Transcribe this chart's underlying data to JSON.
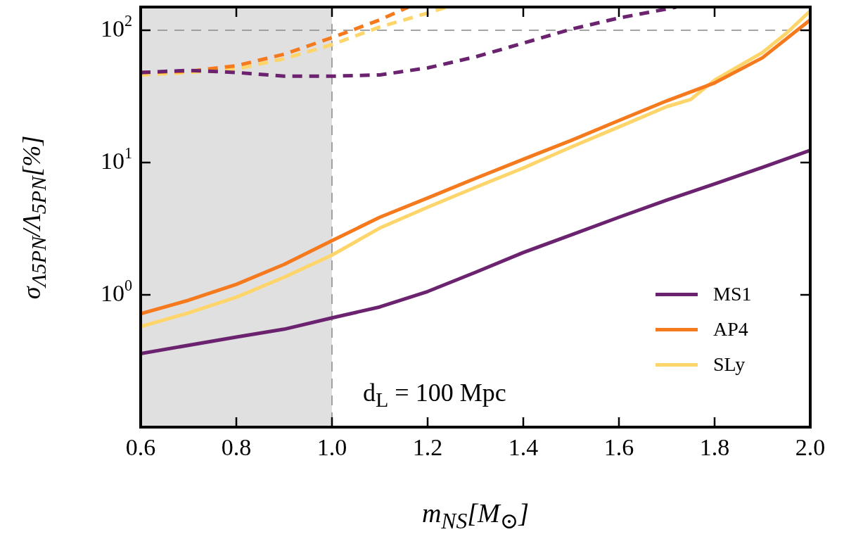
{
  "chart_data": {
    "type": "line",
    "xlabel": "m$_{NS}$[M$_{⊙}$]",
    "ylabel": "σ$_{Λ5PN}$/Λ$_{5PN}$[%]",
    "xlim": [
      0.6,
      2.0
    ],
    "xticks": [
      0.6,
      0.8,
      {
        "value": 1,
        "label": "1.0"
      },
      1.2,
      1.4,
      1.6,
      1.8,
      {
        "value": 2,
        "label": "2.0"
      }
    ],
    "ylim": [
      0.1,
      150
    ],
    "yticks": [
      {
        "value": 1,
        "label": "10$^{0}$"
      },
      {
        "value": 10,
        "label": "10$^{1}$"
      },
      {
        "value": 100,
        "label": "10$^{2}$"
      }
    ],
    "log": "y",
    "grid": false,
    "legend": "bottom right",
    "marker": "none",
    "annotations": [
      "d$_{L}$ = 100 Mpc"
    ],
    "bands": [
      {
        "axis": "x",
        "from": 0.6,
        "to": 1.0,
        "color": "#e0e0e0"
      }
    ],
    "ref_lines": [
      {
        "axis": "x",
        "value": 1.0,
        "color": "#888888",
        "line_style": "dashed"
      },
      {
        "axis": "y",
        "value": 100,
        "color": "#888888",
        "line_style": "dashed"
      }
    ],
    "series": [
      {
        "name": "MS1",
        "color": "#6b2370",
        "line_style": "solid",
        "x": [
          0.6,
          0.8,
          0.9,
          1.0,
          1.1,
          1.2,
          1.3,
          1.4,
          1.5,
          1.6,
          1.7,
          1.8,
          1.9,
          2.0
        ],
        "values": [
          0.36,
          0.48,
          0.55,
          0.67,
          0.81,
          1.06,
          1.48,
          2.09,
          2.84,
          3.86,
          5.2,
          6.9,
          9.2,
          12.4
        ]
      },
      {
        "name": "AP4",
        "color": "#f57a1e",
        "line_style": "solid",
        "x": [
          0.6,
          0.7,
          0.8,
          0.9,
          1.0,
          1.1,
          1.2,
          1.3,
          1.4,
          1.5,
          1.6,
          1.7,
          1.8,
          1.9,
          2.0
        ],
        "values": [
          0.72,
          0.91,
          1.2,
          1.7,
          2.57,
          3.86,
          5.4,
          7.6,
          10.6,
          14.7,
          20.8,
          29.3,
          40,
          62,
          120
        ]
      },
      {
        "name": "SLy",
        "color": "#fdd56a",
        "line_style": "solid",
        "x": [
          0.6,
          0.7,
          0.8,
          0.9,
          1.0,
          1.1,
          1.2,
          1.3,
          1.4,
          1.5,
          1.6,
          1.7,
          1.75,
          1.8,
          1.9,
          1.95,
          2.0
        ],
        "values": [
          0.575,
          0.73,
          0.96,
          1.36,
          2.0,
          3.2,
          4.6,
          6.5,
          9.1,
          13.1,
          18.6,
          26.5,
          30,
          42,
          68,
          95,
          140
        ]
      },
      {
        "color": "#6b2370",
        "line_style": "dashed",
        "x": [
          0.6,
          0.7,
          0.8,
          0.9,
          1.0,
          1.1,
          1.2,
          1.3,
          1.4,
          1.5,
          1.6,
          1.7,
          1.72
        ],
        "values": [
          48,
          49.8,
          48,
          45,
          45,
          46,
          52,
          63,
          80,
          102,
          124,
          145,
          150
        ]
      },
      {
        "color": "#f57a1e",
        "line_style": "dashed",
        "x": [
          0.6,
          0.7,
          0.8,
          0.9,
          1.0,
          1.1,
          1.16
        ],
        "values": [
          48,
          49,
          54,
          66,
          88,
          120,
          150
        ]
      },
      {
        "color": "#fdd56a",
        "line_style": "dashed",
        "x": [
          0.6,
          0.7,
          0.8,
          0.9,
          1.0,
          1.1,
          1.2,
          1.24
        ],
        "values": [
          46,
          48,
          51,
          61,
          78,
          106,
          135,
          150
        ]
      }
    ]
  }
}
